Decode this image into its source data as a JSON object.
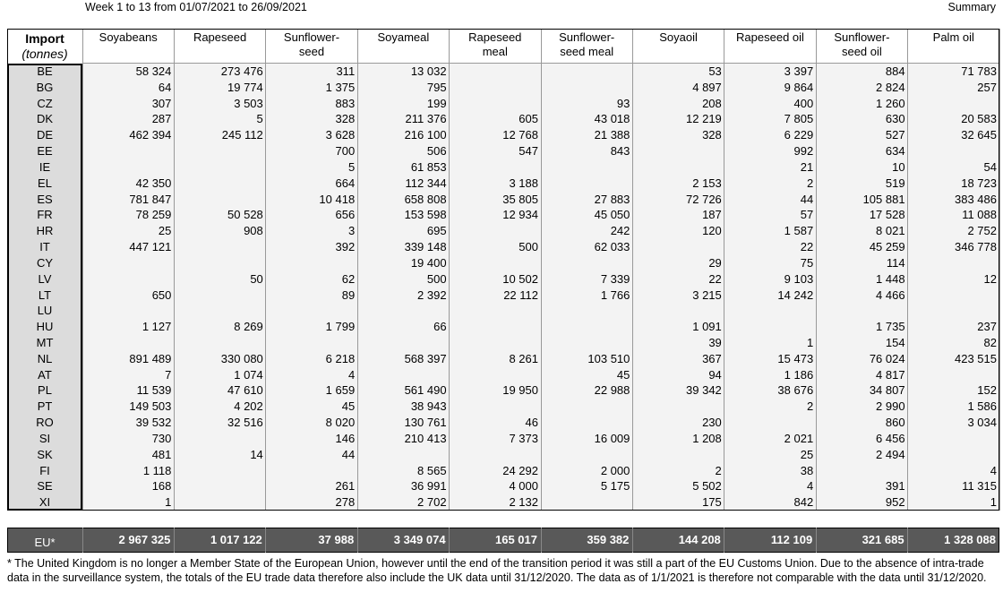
{
  "header": {
    "left": "Week 1 to 13 from 01/07/2021 to 26/09/2021",
    "right": "Summary"
  },
  "table": {
    "corner": {
      "title": "Import",
      "unit": "(tonnes)"
    },
    "columns": [
      "Soyabeans",
      "Rapeseed",
      "Sunflower-seed",
      "Soyameal",
      "Rapeseed meal",
      "Sunflower-seed meal",
      "Soyaoil",
      "Rapeseed oil",
      "Sunflower-seed oil",
      "Palm oil"
    ],
    "rows": [
      {
        "label": "BE",
        "cells": [
          "58 324",
          "273 476",
          "311",
          "13 032",
          null,
          null,
          "53",
          "3 397",
          "884",
          "71 783"
        ]
      },
      {
        "label": "BG",
        "cells": [
          "64",
          "19 774",
          "1 375",
          "795",
          null,
          null,
          "4 897",
          "9 864",
          "2 824",
          "257"
        ]
      },
      {
        "label": "CZ",
        "cells": [
          "307",
          "3 503",
          "883",
          "199",
          null,
          "93",
          "208",
          "400",
          "1 260",
          null
        ]
      },
      {
        "label": "DK",
        "cells": [
          "287",
          "5",
          "328",
          "211 376",
          "605",
          "43 018",
          "12 219",
          "7 805",
          "630",
          "20 583"
        ]
      },
      {
        "label": "DE",
        "cells": [
          "462 394",
          "245 112",
          "3 628",
          "216 100",
          "12 768",
          "21 388",
          "328",
          "6 229",
          "527",
          "32 645"
        ]
      },
      {
        "label": "EE",
        "cells": [
          null,
          null,
          "700",
          "506",
          "547",
          "843",
          null,
          "992",
          "634",
          null
        ]
      },
      {
        "label": "IE",
        "cells": [
          null,
          null,
          "5",
          "61 853",
          null,
          null,
          null,
          "21",
          "10",
          "54"
        ]
      },
      {
        "label": "EL",
        "cells": [
          "42 350",
          null,
          "664",
          "112 344",
          "3 188",
          null,
          "2 153",
          "2",
          "519",
          "18 723"
        ]
      },
      {
        "label": "ES",
        "cells": [
          "781 847",
          null,
          "10 418",
          "658 808",
          "35 805",
          "27 883",
          "72 726",
          "44",
          "105 881",
          "383 486"
        ]
      },
      {
        "label": "FR",
        "cells": [
          "78 259",
          "50 528",
          "656",
          "153 598",
          "12 934",
          "45 050",
          "187",
          "57",
          "17 528",
          "11 088"
        ]
      },
      {
        "label": "HR",
        "cells": [
          "25",
          "908",
          "3",
          "695",
          null,
          "242",
          "120",
          "1 587",
          "8 021",
          "2 752"
        ]
      },
      {
        "label": "IT",
        "cells": [
          "447 121",
          null,
          "392",
          "339 148",
          "500",
          "62 033",
          null,
          "22",
          "45 259",
          "346 778"
        ]
      },
      {
        "label": "CY",
        "cells": [
          null,
          null,
          null,
          "19 400",
          null,
          null,
          "29",
          "75",
          "114",
          null
        ]
      },
      {
        "label": "LV",
        "cells": [
          null,
          "50",
          "62",
          "500",
          "10 502",
          "7 339",
          "22",
          "9 103",
          "1 448",
          "12"
        ]
      },
      {
        "label": "LT",
        "cells": [
          "650",
          null,
          "89",
          "2 392",
          "22 112",
          "1 766",
          "3 215",
          "14 242",
          "4 466",
          null
        ]
      },
      {
        "label": "LU",
        "cells": [
          null,
          null,
          null,
          null,
          null,
          null,
          null,
          null,
          null,
          null
        ]
      },
      {
        "label": "HU",
        "cells": [
          "1 127",
          "8 269",
          "1 799",
          "66",
          null,
          null,
          "1 091",
          null,
          "1 735",
          "237"
        ]
      },
      {
        "label": "MT",
        "cells": [
          null,
          null,
          null,
          null,
          null,
          null,
          "39",
          "1",
          "154",
          "82"
        ]
      },
      {
        "label": "NL",
        "cells": [
          "891 489",
          "330 080",
          "6 218",
          "568 397",
          "8 261",
          "103 510",
          "367",
          "15 473",
          "76 024",
          "423 515"
        ]
      },
      {
        "label": "AT",
        "cells": [
          "7",
          "1 074",
          "4",
          null,
          null,
          "45",
          "94",
          "1 186",
          "4 817",
          null
        ]
      },
      {
        "label": "PL",
        "cells": [
          "11 539",
          "47 610",
          "1 659",
          "561 490",
          "19 950",
          "22 988",
          "39 342",
          "38 676",
          "34 807",
          "152"
        ]
      },
      {
        "label": "PT",
        "cells": [
          "149 503",
          "4 202",
          "45",
          "38 943",
          null,
          null,
          null,
          "2",
          "2 990",
          "1 586"
        ]
      },
      {
        "label": "RO",
        "cells": [
          "39 532",
          "32 516",
          "8 020",
          "130 761",
          "46",
          null,
          "230",
          null,
          "860",
          "3 034"
        ]
      },
      {
        "label": "SI",
        "cells": [
          "730",
          null,
          "146",
          "210 413",
          "7 373",
          "16 009",
          "1 208",
          "2 021",
          "6 456",
          null
        ]
      },
      {
        "label": "SK",
        "cells": [
          "481",
          "14",
          "44",
          null,
          null,
          null,
          null,
          "25",
          "2 494",
          null
        ]
      },
      {
        "label": "FI",
        "cells": [
          "1 118",
          null,
          null,
          "8 565",
          "24 292",
          "2 000",
          "2",
          "38",
          null,
          "4"
        ]
      },
      {
        "label": "SE",
        "cells": [
          "168",
          null,
          "261",
          "36 991",
          "4 000",
          "5 175",
          "5 502",
          "4",
          "391",
          "11 315"
        ]
      },
      {
        "label": "XI",
        "cells": [
          "1",
          null,
          "278",
          "2 702",
          "2 132",
          null,
          "175",
          "842",
          "952",
          "1"
        ]
      }
    ],
    "total": {
      "label": "EU*",
      "cells": [
        "2 967 325",
        "1 017 122",
        "37 988",
        "3 349 074",
        "165 017",
        "359 382",
        "144 208",
        "112 109",
        "321 685",
        "1 328 088"
      ]
    }
  },
  "footnote": "* The United Kingdom is no longer a Member State of the European Union, however until the end of the transition period it was still a part of the EU Customs Union. Due to the absence of intra-trade data in the surveillance system, the totals of the EU trade data  therefore also include the UK data until 31/12/2020. The data as of 1/1/2021 is therefore not comparable with the data until 31/12/2020."
}
